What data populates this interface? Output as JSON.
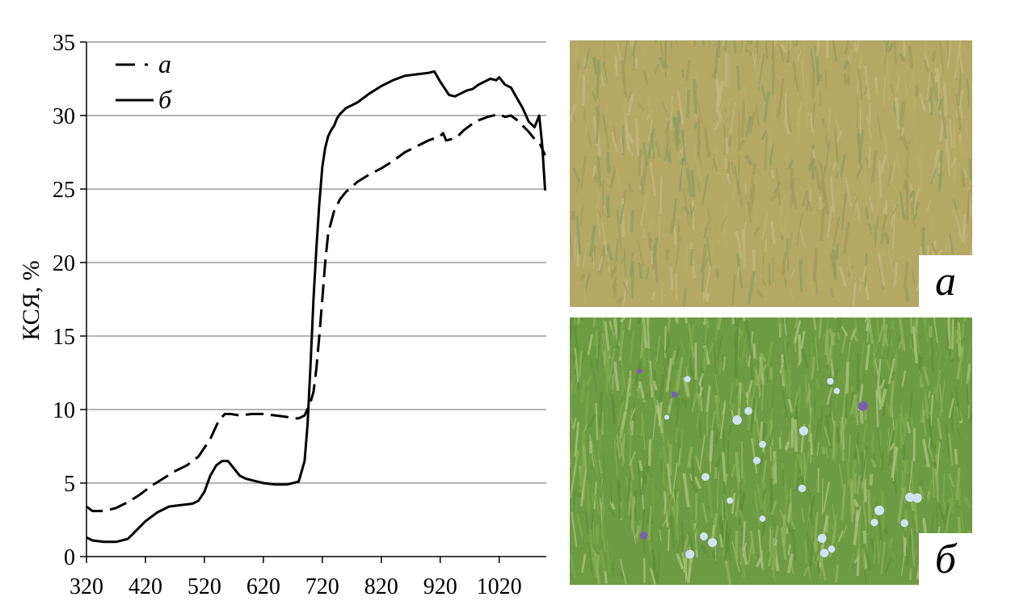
{
  "chart_data": {
    "type": "line",
    "title": "",
    "xlabel": "",
    "ylabel": "КСЯ, %",
    "xlim": [
      320,
      1100
    ],
    "ylim": [
      0,
      35
    ],
    "x_ticks": [
      "320",
      "420",
      "520",
      "620",
      "720",
      "820",
      "920",
      "1020"
    ],
    "y_ticks": [
      "0",
      "5",
      "10",
      "15",
      "20",
      "25",
      "30",
      "35"
    ],
    "grid": "horizontal",
    "legend_position": "top-left",
    "series": [
      {
        "name": "а",
        "style": "dashed",
        "x": [
          320,
          330,
          350,
          370,
          390,
          410,
          430,
          450,
          470,
          490,
          510,
          530,
          545,
          555,
          565,
          580,
          600,
          620,
          640,
          660,
          670,
          680,
          690,
          700,
          705,
          710,
          715,
          720,
          725,
          730,
          740,
          750,
          760,
          780,
          800,
          820,
          840,
          860,
          880,
          900,
          920,
          925,
          930,
          940,
          950,
          960,
          980,
          1000,
          1020,
          1030,
          1040,
          1050,
          1060,
          1070,
          1080,
          1090,
          1098
        ],
        "y": [
          3.4,
          3.1,
          3.1,
          3.3,
          3.7,
          4.2,
          4.8,
          5.3,
          5.8,
          6.2,
          6.8,
          8.0,
          9.3,
          9.7,
          9.7,
          9.6,
          9.7,
          9.7,
          9.6,
          9.5,
          9.4,
          9.4,
          9.6,
          10.5,
          11.2,
          12.8,
          15.0,
          17.5,
          20.0,
          22.0,
          23.5,
          24.3,
          24.8,
          25.5,
          26.0,
          26.4,
          26.9,
          27.5,
          27.9,
          28.3,
          28.6,
          28.8,
          28.3,
          28.4,
          28.6,
          29.0,
          29.6,
          29.9,
          30.1,
          29.9,
          30.0,
          29.7,
          29.3,
          28.9,
          28.4,
          28.0,
          27.3
        ]
      },
      {
        "name": "б",
        "style": "solid",
        "x": [
          320,
          330,
          350,
          370,
          390,
          400,
          420,
          440,
          460,
          480,
          500,
          510,
          520,
          530,
          540,
          550,
          560,
          570,
          580,
          590,
          600,
          620,
          640,
          660,
          680,
          690,
          695,
          700,
          705,
          710,
          715,
          720,
          725,
          730,
          735,
          740,
          745,
          750,
          760,
          770,
          780,
          800,
          820,
          840,
          860,
          880,
          900,
          910,
          920,
          925,
          935,
          945,
          955,
          965,
          975,
          985,
          995,
          1005,
          1015,
          1020,
          1030,
          1040,
          1050,
          1060,
          1070,
          1080,
          1088,
          1093,
          1098
        ],
        "y": [
          1.3,
          1.1,
          1.0,
          1.0,
          1.2,
          1.6,
          2.4,
          3.0,
          3.4,
          3.5,
          3.6,
          3.8,
          4.4,
          5.5,
          6.2,
          6.5,
          6.5,
          6.0,
          5.5,
          5.3,
          5.2,
          5.0,
          4.9,
          4.9,
          5.1,
          6.5,
          9.0,
          13.0,
          17.5,
          21.0,
          24.0,
          26.5,
          27.8,
          28.6,
          29.0,
          29.3,
          29.8,
          30.1,
          30.5,
          30.7,
          30.9,
          31.5,
          32.0,
          32.4,
          32.7,
          32.8,
          32.9,
          33.0,
          32.3,
          32.0,
          31.4,
          31.3,
          31.5,
          31.7,
          31.8,
          32.1,
          32.3,
          32.5,
          32.4,
          32.6,
          32.1,
          31.9,
          31.2,
          30.5,
          29.6,
          29.2,
          30.0,
          28.0,
          24.9
        ]
      }
    ]
  },
  "photos": {
    "a": {
      "label": "а",
      "colors": [
        "#b7ac6a",
        "#a39a5d",
        "#8f9e63",
        "#c2b67f"
      ],
      "description_icon": "dry-grass-photo-icon"
    },
    "b": {
      "label": "б",
      "colors": [
        "#5f8f3a",
        "#7aa84a",
        "#8fb35c",
        "#a7c37b"
      ],
      "description_icon": "green-grass-flowers-photo-icon"
    }
  }
}
